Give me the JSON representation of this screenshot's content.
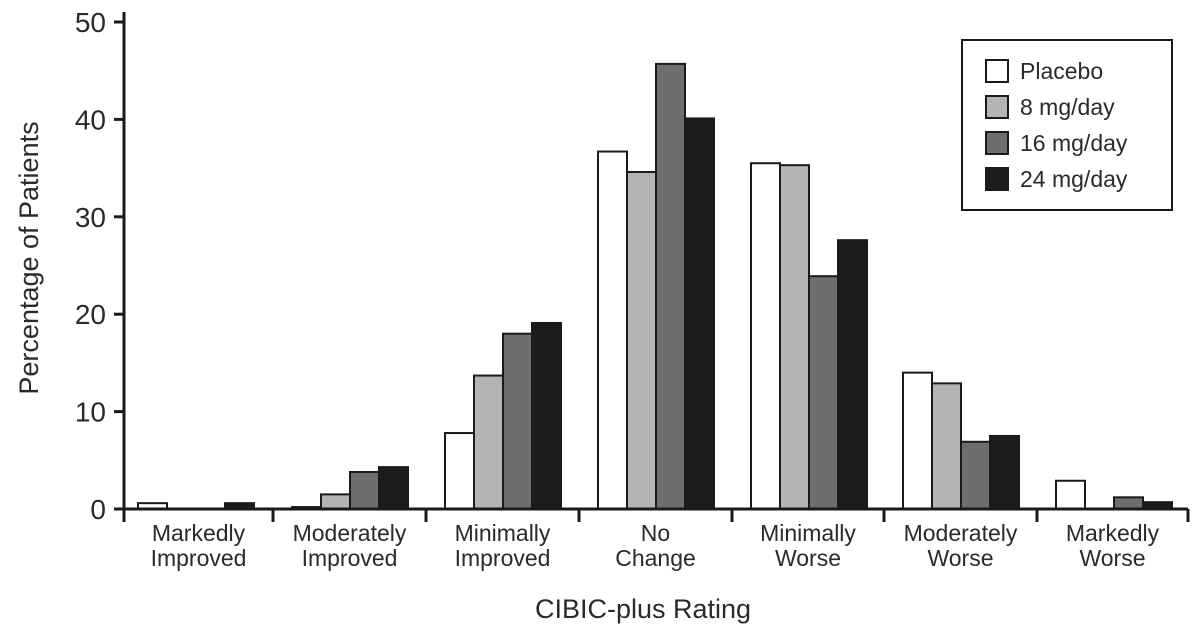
{
  "chart_data": {
    "type": "bar",
    "categories": [
      "Markedly Improved",
      "Moderately Improved",
      "Minimally Improved",
      "No Change",
      "Minimally Worse",
      "Moderately Worse",
      "Markedly Worse"
    ],
    "category_label_lines": [
      [
        "Markedly",
        "Improved"
      ],
      [
        "Moderately",
        "Improved"
      ],
      [
        "Minimally",
        "Improved"
      ],
      [
        "No",
        "Change"
      ],
      [
        "Minimally",
        "Worse"
      ],
      [
        "Moderately",
        "Worse"
      ],
      [
        "Markedly",
        "Worse"
      ]
    ],
    "series": [
      {
        "name": "Placebo",
        "color": "#ffffff",
        "values": [
          0.6,
          0.2,
          7.8,
          36.7,
          35.5,
          14.0,
          2.9
        ]
      },
      {
        "name": "8 mg/day",
        "color": "#b4b4b4",
        "values": [
          0.0,
          1.5,
          13.7,
          34.6,
          35.3,
          12.9,
          0.0
        ]
      },
      {
        "name": "16 mg/day",
        "color": "#6e6e6e",
        "values": [
          0.0,
          3.8,
          18.0,
          45.7,
          23.9,
          6.9,
          1.2
        ]
      },
      {
        "name": "24 mg/day",
        "color": "#1c1c1c",
        "values": [
          0.6,
          4.3,
          19.1,
          40.1,
          27.6,
          7.5,
          0.7
        ]
      }
    ],
    "title": "",
    "xlabel": "CIBIC-plus Rating",
    "ylabel": "Percentage of Patients",
    "ylim": [
      0,
      50
    ],
    "yticks": [
      0,
      10,
      20,
      30,
      40,
      50
    ],
    "grid": false,
    "legend_position": "top-right"
  }
}
